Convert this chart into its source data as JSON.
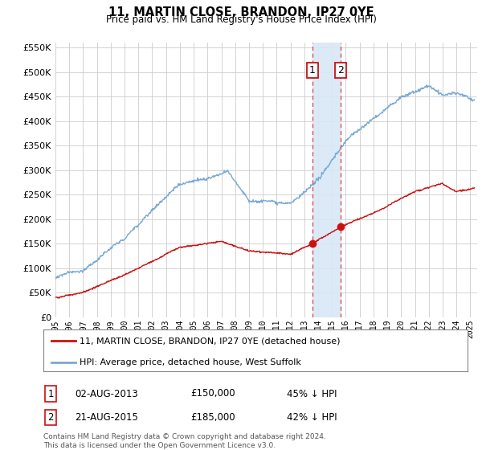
{
  "title": "11, MARTIN CLOSE, BRANDON, IP27 0YE",
  "subtitle": "Price paid vs. HM Land Registry's House Price Index (HPI)",
  "legend_line1": "11, MARTIN CLOSE, BRANDON, IP27 0YE (detached house)",
  "legend_line2": "HPI: Average price, detached house, West Suffolk",
  "transaction1_date": "02-AUG-2013",
  "transaction1_price": "£150,000",
  "transaction1_pct": "45% ↓ HPI",
  "transaction1_year": 2013.58,
  "transaction1_value": 150000,
  "transaction2_date": "21-AUG-2015",
  "transaction2_price": "£185,000",
  "transaction2_pct": "42% ↓ HPI",
  "transaction2_year": 2015.63,
  "transaction2_value": 185000,
  "hpi_color": "#7aaad4",
  "price_color": "#cc1111",
  "ylim_min": 0,
  "ylim_max": 560000,
  "xmin": 1995,
  "xmax": 2025.5,
  "footer": "Contains HM Land Registry data © Crown copyright and database right 2024.\nThis data is licensed under the Open Government Licence v3.0."
}
